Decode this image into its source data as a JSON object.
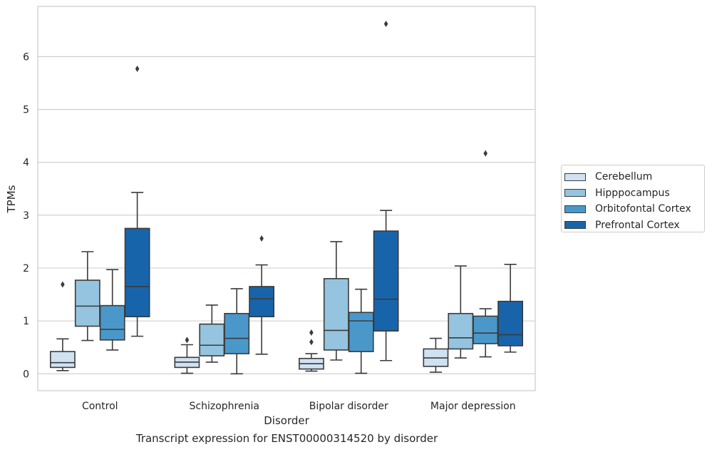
{
  "chart_data": {
    "type": "box",
    "xlabel": "Disorder",
    "ylabel": "TPMs",
    "caption": "Transcript expression for ENST00000314520 by disorder",
    "categories": [
      "Control",
      "Schizophrenia",
      "Bipolar disorder",
      "Major depression"
    ],
    "y_ticks": [
      "0",
      "1",
      "2",
      "3",
      "4",
      "5",
      "6"
    ],
    "ylim": [
      -0.32,
      6.95
    ],
    "grid": "horizontal",
    "legend_position": "right",
    "series": [
      {
        "name": "Cerebellum",
        "color": "#d0e1f2",
        "boxes": [
          {
            "whislo": 0.06,
            "q1": 0.12,
            "median": 0.21,
            "q3": 0.42,
            "whishi": 0.66,
            "fliers": [
              1.69
            ]
          },
          {
            "whislo": 0.01,
            "q1": 0.12,
            "median": 0.22,
            "q3": 0.31,
            "whishi": 0.55,
            "fliers": [
              0.64
            ]
          },
          {
            "whislo": 0.05,
            "q1": 0.09,
            "median": 0.19,
            "q3": 0.29,
            "whishi": 0.38,
            "fliers": [
              0.6,
              0.78
            ]
          },
          {
            "whislo": 0.03,
            "q1": 0.14,
            "median": 0.3,
            "q3": 0.47,
            "whishi": 0.67,
            "fliers": []
          }
        ]
      },
      {
        "name": "Hipppocampus",
        "color": "#94c4df",
        "boxes": [
          {
            "whislo": 0.63,
            "q1": 0.9,
            "median": 1.28,
            "q3": 1.77,
            "whishi": 2.31,
            "fliers": []
          },
          {
            "whislo": 0.22,
            "q1": 0.34,
            "median": 0.54,
            "q3": 0.94,
            "whishi": 1.3,
            "fliers": []
          },
          {
            "whislo": 0.26,
            "q1": 0.45,
            "median": 0.82,
            "q3": 1.8,
            "whishi": 2.5,
            "fliers": []
          },
          {
            "whislo": 0.3,
            "q1": 0.47,
            "median": 0.68,
            "q3": 1.14,
            "whishi": 2.04,
            "fliers": []
          }
        ]
      },
      {
        "name": "Orbitofontal Cortex",
        "color": "#4a98c9",
        "boxes": [
          {
            "whislo": 0.45,
            "q1": 0.64,
            "median": 0.84,
            "q3": 1.29,
            "whishi": 1.97,
            "fliers": []
          },
          {
            "whislo": 0.0,
            "q1": 0.38,
            "median": 0.67,
            "q3": 1.14,
            "whishi": 1.61,
            "fliers": []
          },
          {
            "whislo": 0.01,
            "q1": 0.42,
            "median": 1.0,
            "q3": 1.16,
            "whishi": 1.6,
            "fliers": []
          },
          {
            "whislo": 0.32,
            "q1": 0.57,
            "median": 0.77,
            "q3": 1.09,
            "whishi": 1.23,
            "fliers": [
              4.17
            ]
          }
        ]
      },
      {
        "name": "Prefrontal Cortex",
        "color": "#1764ab",
        "boxes": [
          {
            "whislo": 0.71,
            "q1": 1.08,
            "median": 1.65,
            "q3": 2.75,
            "whishi": 3.43,
            "fliers": [
              5.77
            ]
          },
          {
            "whislo": 0.37,
            "q1": 1.08,
            "median": 1.42,
            "q3": 1.65,
            "whishi": 2.06,
            "fliers": [
              2.56
            ]
          },
          {
            "whislo": 0.25,
            "q1": 0.81,
            "median": 1.41,
            "q3": 2.7,
            "whishi": 3.09,
            "fliers": [
              6.62
            ]
          },
          {
            "whislo": 0.41,
            "q1": 0.53,
            "median": 0.74,
            "q3": 1.37,
            "whishi": 2.07,
            "fliers": []
          }
        ]
      }
    ]
  }
}
